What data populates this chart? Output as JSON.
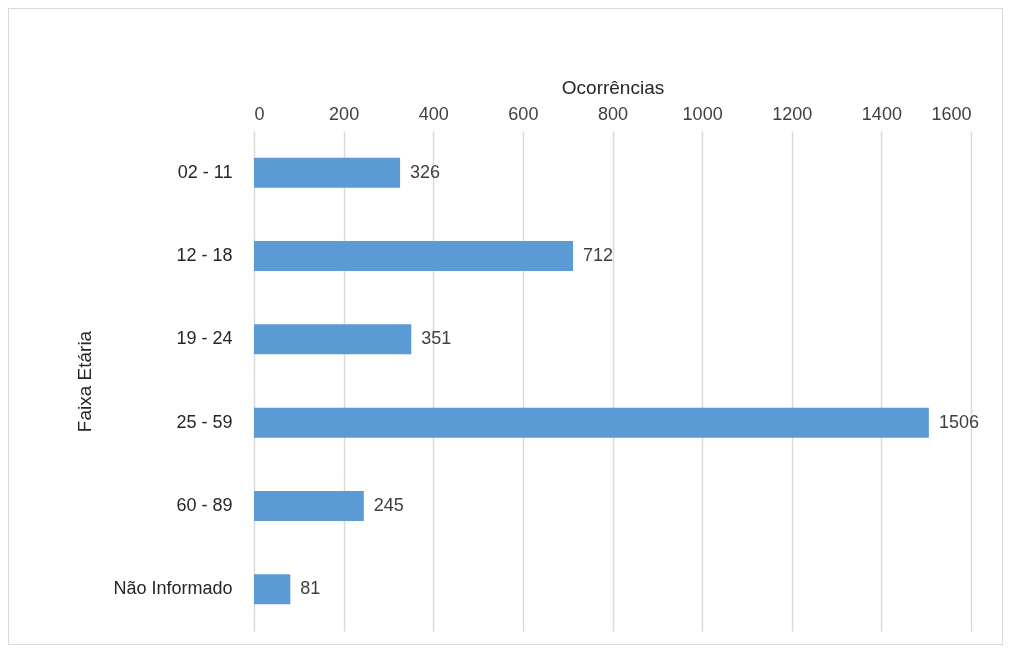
{
  "chart_data": {
    "type": "bar",
    "orientation": "horizontal",
    "xlabel": "Ocorrências",
    "ylabel": "Faixa Etária",
    "categories": [
      "02 - 11",
      "12 - 18",
      "19 - 24",
      "25 - 59",
      "60 - 89",
      "Não Informado"
    ],
    "values": [
      326,
      712,
      351,
      1506,
      245,
      81
    ],
    "color": "#5b9bd5",
    "xlim": [
      0,
      1600
    ],
    "xticks": [
      0,
      200,
      400,
      600,
      800,
      1000,
      1200,
      1400,
      1600
    ],
    "grid": "x",
    "data_labels": true
  }
}
